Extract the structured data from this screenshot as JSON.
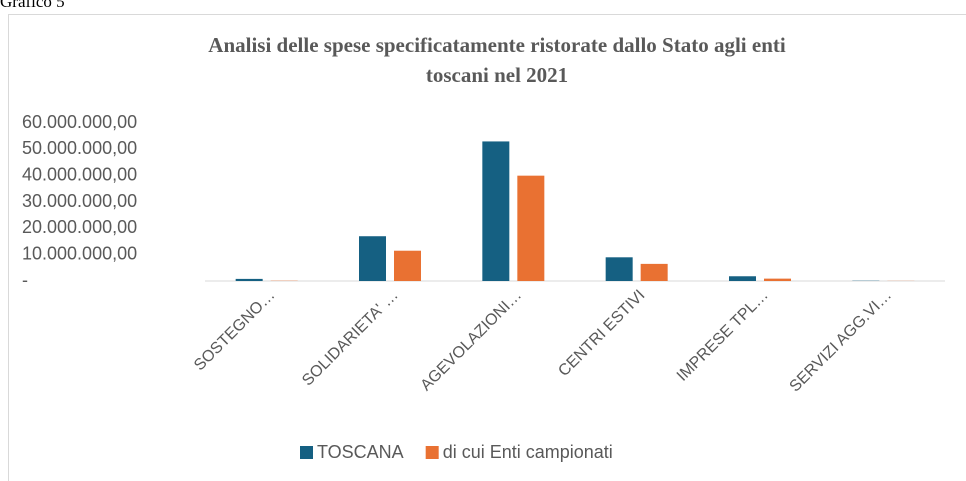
{
  "caption": "Grafico 5",
  "chart_data": {
    "type": "bar",
    "title": [
      "Analisi delle spese specificatamente ristorate dallo Stato agli enti",
      "toscani nel 2021"
    ],
    "categories": [
      "SOSTEGNO…",
      "SOLIDARIETA' …",
      "AGEVOLAZIONI…",
      "CENTRI ESTIVI",
      "IMPRESE TPL…",
      "SERVIZI AGG.VI…"
    ],
    "series": [
      {
        "name": "TOSCANA",
        "color": "#156082",
        "values": [
          800000,
          17000000,
          53000000,
          9000000,
          1800000,
          100000
        ]
      },
      {
        "name": "di cui Enti campionati",
        "color": "#e97132",
        "values": [
          100000,
          11500000,
          40000000,
          6500000,
          900000,
          50000
        ]
      }
    ],
    "ylim": [
      0,
      60000000
    ],
    "yticks": [
      {
        "value": 0,
        "label": "-"
      },
      {
        "value": 10000000,
        "label": "10.000.000,00"
      },
      {
        "value": 20000000,
        "label": "20.000.000,00"
      },
      {
        "value": 30000000,
        "label": "30.000.000,00"
      },
      {
        "value": 40000000,
        "label": "40.000.000,00"
      },
      {
        "value": 50000000,
        "label": "50.000.000,00"
      },
      {
        "value": 60000000,
        "label": "60.000.000,00"
      }
    ],
    "grid": false,
    "legend": "bottom"
  }
}
